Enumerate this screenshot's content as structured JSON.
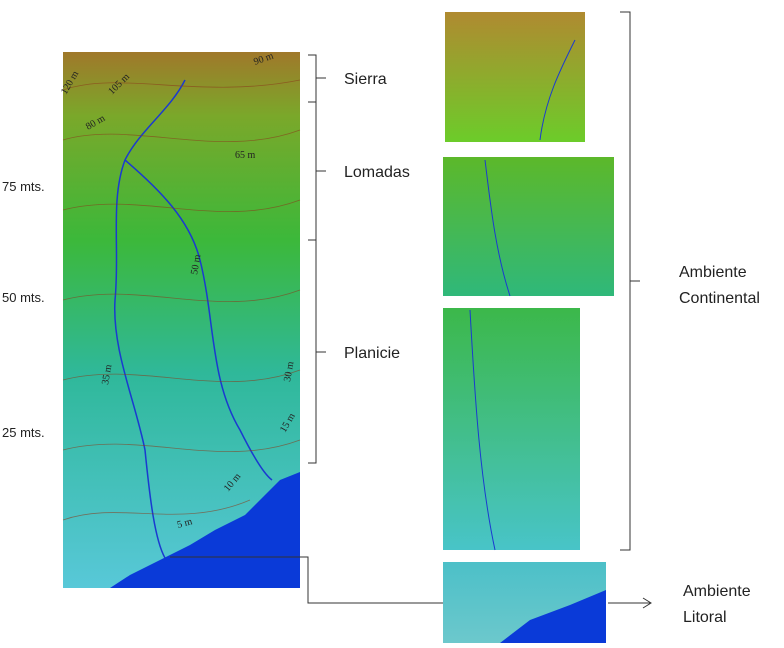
{
  "axis_labels": [
    "75 mts.",
    "50 mts.",
    "25 mts."
  ],
  "zones": [
    "Sierra",
    "Lomadas",
    "Planicie"
  ],
  "contour_labels": [
    "120 m",
    "105 m",
    "90 m",
    "80 m",
    "65 m",
    "50 m",
    "35 m",
    "30 m",
    "15 m",
    "10 m",
    "5 m"
  ],
  "environments": {
    "continental": [
      "Ambiente",
      "Continental"
    ],
    "litoral": [
      "Ambiente",
      "Litoral"
    ]
  }
}
